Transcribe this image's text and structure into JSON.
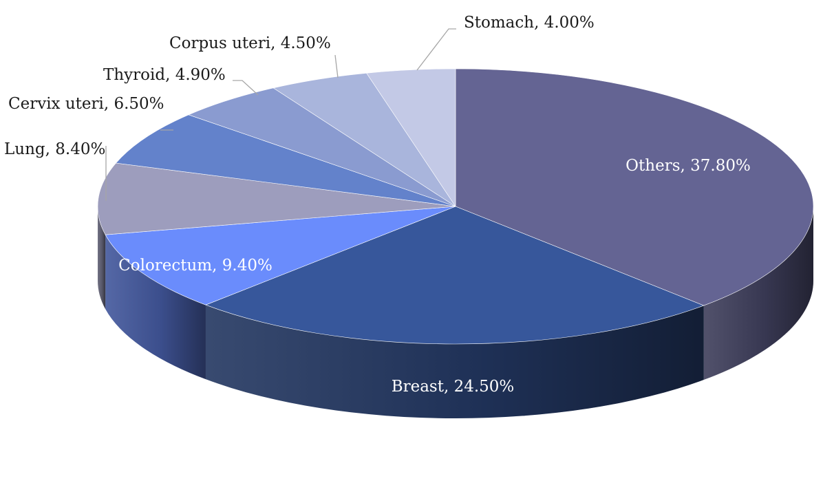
{
  "chart_data": {
    "type": "pie",
    "style": "3d-perspective",
    "title": "",
    "start_angle": "12 o'clock",
    "direction": "clockwise",
    "legend": "none (data labels)",
    "slices": [
      {
        "name": "Others",
        "value": 37.8,
        "label": "Others, 37.80%",
        "color": "#646493",
        "label_position": "inside"
      },
      {
        "name": "Breast",
        "value": 24.5,
        "label": "Breast, 24.50%",
        "color": "#37579b",
        "label_position": "inside"
      },
      {
        "name": "Colorectum",
        "value": 9.4,
        "label": "Colorectum, 9.40%",
        "color": "#6a8cfc",
        "label_position": "inside"
      },
      {
        "name": "Lung",
        "value": 8.4,
        "label": "Lung, 8.40%",
        "color": "#9d9dbd",
        "label_position": "outside"
      },
      {
        "name": "Cervix uteri",
        "value": 6.5,
        "label": "Cervix uteri, 6.50%",
        "color": "#6382cb",
        "label_position": "outside"
      },
      {
        "name": "Thyroid",
        "value": 4.9,
        "label": "Thyroid, 4.90%",
        "color": "#8a9bd0",
        "label_position": "outside"
      },
      {
        "name": "Corpus uteri",
        "value": 4.5,
        "label": "Corpus uteri, 4.50%",
        "color": "#a9b5dc",
        "label_position": "outside"
      },
      {
        "name": "Stomach",
        "value": 4.0,
        "label": "Stomach, 4.00%",
        "color": "#c3c9e6",
        "label_position": "outside"
      }
    ]
  }
}
